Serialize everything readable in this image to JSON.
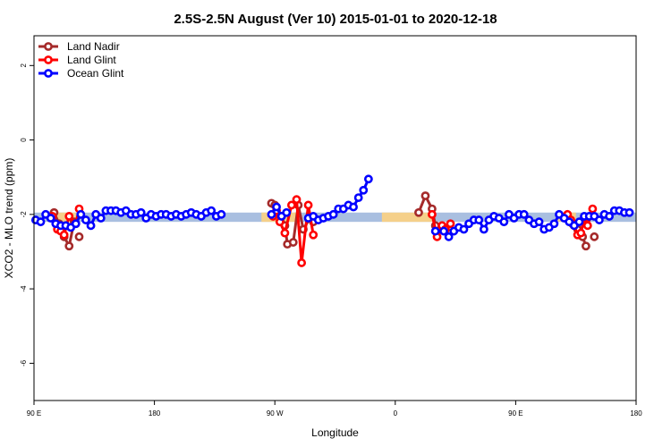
{
  "chart_data": {
    "type": "line",
    "title": "2.5S-2.5N August (Ver 10)   2015-01-01 to 2020-12-18",
    "xlabel": "Longitude",
    "ylabel": "XCO2 - MLO trend (ppm)",
    "xlim": [
      90,
      450
    ],
    "ylim": [
      -7,
      2.8
    ],
    "x_ticks": [
      {
        "value": 90,
        "label": "90 E"
      },
      {
        "value": 162,
        "label": "180"
      },
      {
        "value": 234,
        "label": "90 W"
      },
      {
        "value": 306,
        "label": "0"
      },
      {
        "value": 378,
        "label": "90 E"
      },
      {
        "value": 450,
        "label": "180"
      }
    ],
    "y_ticks": [
      -6,
      -4,
      -2,
      0,
      2
    ],
    "legend": {
      "position": "top-left",
      "entries": [
        {
          "name": "Land Nadir",
          "color": "#a52a2a"
        },
        {
          "name": "Land Glint",
          "color": "#ff0000"
        },
        {
          "name": "Ocean Glint",
          "color": "#0000ff"
        }
      ]
    },
    "bands": [
      {
        "color": "#a9bfe0",
        "x": [
          90,
          450
        ],
        "y": [
          -2.2,
          -1.95
        ]
      },
      {
        "color": "#f5d08a",
        "x": [
          98,
          115
        ],
        "y": [
          -2.2,
          -1.95
        ]
      },
      {
        "color": "#f5d08a",
        "x": [
          226,
          248
        ],
        "y": [
          -2.2,
          -1.95
        ]
      },
      {
        "color": "#f5d08a",
        "x": [
          298,
          328
        ],
        "y": [
          -2.2,
          -1.95
        ]
      },
      {
        "color": "#f5d08a",
        "x": [
          403,
          414
        ],
        "y": [
          -2.2,
          -1.95
        ]
      }
    ],
    "series": [
      {
        "name": "Land Nadir",
        "color": "#a52a2a",
        "segments": [
          [
            [
              102,
              -1.95
            ],
            [
              105,
              -2.25
            ],
            [
              108,
              -2.6
            ],
            [
              111,
              -2.85
            ],
            [
              114,
              -2.2
            ]
          ],
          [
            [
              117,
              -2.6
            ]
          ],
          [
            [
              232,
              -1.7
            ],
            [
              234,
              -1.75
            ],
            [
              238,
              -2.05
            ],
            [
              240,
              -2.3
            ],
            [
              241.5,
              -2.8
            ],
            [
              245,
              -2.75
            ],
            [
              248,
              -1.75
            ],
            [
              251,
              -2.4
            ],
            [
              255,
              -2.1
            ],
            [
              257,
              -2.2
            ]
          ],
          [
            [
              320,
              -1.95
            ],
            [
              324,
              -1.5
            ],
            [
              328,
              -1.85
            ],
            [
              330,
              -2.3
            ],
            [
              336,
              -2.4
            ]
          ],
          [
            [
              408,
              -2.1
            ],
            [
              412,
              -2.25
            ],
            [
              415,
              -2.4
            ],
            [
              418,
              -2.6
            ],
            [
              420,
              -2.85
            ]
          ],
          [
            [
              425,
              -2.6
            ]
          ]
        ]
      },
      {
        "name": "Land Glint",
        "color": "#ff0000",
        "segments": [
          [
            [
              101,
              -2.05
            ],
            [
              104,
              -2.4
            ],
            [
              106,
              -2.45
            ],
            [
              108,
              -2.55
            ],
            [
              111,
              -2.05
            ],
            [
              115,
              -2.25
            ],
            [
              117,
              -1.85
            ]
          ],
          [
            [
              233,
              -2.05
            ],
            [
              235,
              -1.9
            ],
            [
              237,
              -2.2
            ],
            [
              240,
              -2.5
            ],
            [
              244,
              -1.75
            ],
            [
              247,
              -1.6
            ],
            [
              250,
              -3.3
            ],
            [
              254,
              -1.75
            ],
            [
              257,
              -2.55
            ]
          ],
          [
            [
              328,
              -2.0
            ],
            [
              331,
              -2.6
            ],
            [
              334,
              -2.3
            ],
            [
              336,
              -2.4
            ],
            [
              339,
              -2.25
            ]
          ],
          [
            [
              409,
              -2.0
            ],
            [
              411,
              -2.15
            ],
            [
              413,
              -2.3
            ],
            [
              415,
              -2.55
            ],
            [
              417,
              -2.5
            ],
            [
              419,
              -2.1
            ],
            [
              421,
              -2.3
            ],
            [
              424,
              -1.85
            ]
          ]
        ]
      },
      {
        "name": "Ocean Glint",
        "color": "#0000ff",
        "segments": [
          [
            [
              91,
              -2.15
            ],
            [
              94,
              -2.2
            ],
            [
              97,
              -2.0
            ],
            [
              100,
              -2.1
            ],
            [
              103,
              -2.25
            ],
            [
              106,
              -2.3
            ],
            [
              109,
              -2.3
            ],
            [
              112,
              -2.35
            ],
            [
              115,
              -2.25
            ],
            [
              118,
              -2.0
            ],
            [
              121,
              -2.15
            ],
            [
              124,
              -2.3
            ],
            [
              127,
              -2.0
            ],
            [
              130,
              -2.1
            ],
            [
              133,
              -1.9
            ],
            [
              136,
              -1.9
            ],
            [
              139,
              -1.9
            ],
            [
              142,
              -1.95
            ],
            [
              145,
              -1.9
            ],
            [
              148,
              -2.0
            ],
            [
              151,
              -2.0
            ],
            [
              154,
              -1.95
            ],
            [
              157,
              -2.1
            ],
            [
              160,
              -2.0
            ],
            [
              163,
              -2.05
            ],
            [
              166,
              -2.0
            ],
            [
              169,
              -2.0
            ],
            [
              172,
              -2.05
            ],
            [
              175,
              -2.0
            ],
            [
              178,
              -2.05
            ],
            [
              181,
              -2.0
            ],
            [
              184,
              -1.95
            ],
            [
              187,
              -2.0
            ],
            [
              190,
              -2.05
            ],
            [
              193,
              -1.95
            ],
            [
              196,
              -1.9
            ],
            [
              199,
              -2.05
            ],
            [
              202,
              -2.0
            ]
          ],
          [
            [
              232,
              -2.0
            ],
            [
              235,
              -1.8
            ],
            [
              238,
              -2.05
            ],
            [
              241,
              -1.95
            ]
          ],
          [
            [
              254,
              -2.1
            ],
            [
              257,
              -2.05
            ],
            [
              260,
              -2.15
            ],
            [
              263,
              -2.1
            ],
            [
              266,
              -2.05
            ],
            [
              269,
              -2.0
            ],
            [
              272,
              -1.85
            ],
            [
              275,
              -1.85
            ],
            [
              278,
              -1.75
            ],
            [
              281,
              -1.8
            ],
            [
              284,
              -1.55
            ],
            [
              287,
              -1.35
            ],
            [
              290,
              -1.05
            ]
          ],
          [
            [
              330,
              -2.45
            ],
            [
              335,
              -2.45
            ],
            [
              338,
              -2.6
            ],
            [
              341,
              -2.45
            ],
            [
              344,
              -2.35
            ],
            [
              347,
              -2.4
            ],
            [
              350,
              -2.25
            ],
            [
              353,
              -2.15
            ],
            [
              356,
              -2.15
            ],
            [
              359,
              -2.4
            ],
            [
              362,
              -2.15
            ],
            [
              365,
              -2.05
            ],
            [
              368,
              -2.1
            ],
            [
              371,
              -2.2
            ],
            [
              374,
              -2.0
            ],
            [
              377,
              -2.1
            ],
            [
              380,
              -2.0
            ],
            [
              383,
              -2.0
            ],
            [
              386,
              -2.15
            ],
            [
              389,
              -2.25
            ],
            [
              392,
              -2.2
            ],
            [
              395,
              -2.4
            ],
            [
              398,
              -2.35
            ],
            [
              401,
              -2.25
            ],
            [
              404,
              -2.0
            ],
            [
              407,
              -2.1
            ],
            [
              410,
              -2.2
            ],
            [
              413,
              -2.3
            ],
            [
              416,
              -2.2
            ],
            [
              419,
              -2.05
            ],
            [
              422,
              -2.05
            ],
            [
              425,
              -2.05
            ],
            [
              428,
              -2.15
            ],
            [
              431,
              -2.0
            ],
            [
              434,
              -2.05
            ],
            [
              437,
              -1.9
            ],
            [
              440,
              -1.9
            ],
            [
              443,
              -1.95
            ],
            [
              446,
              -1.95
            ]
          ]
        ]
      }
    ]
  }
}
